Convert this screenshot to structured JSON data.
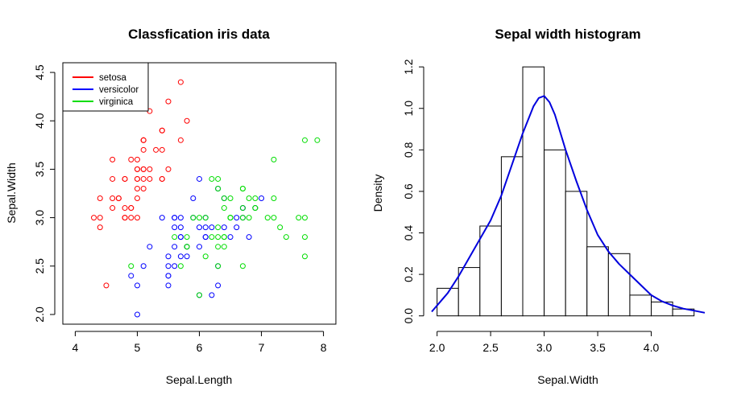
{
  "chart_data": [
    {
      "type": "scatter",
      "title": "Classfication iris data",
      "xlabel": "Sepal.Length",
      "ylabel": "Sepal.Width",
      "xlim": [
        3.8,
        8.2
      ],
      "ylim": [
        1.9,
        4.6
      ],
      "xticks": [
        "4",
        "5",
        "6",
        "7",
        "8"
      ],
      "yticks": [
        "2.0",
        "2.5",
        "3.0",
        "3.5",
        "4.0",
        "4.5"
      ],
      "legend": {
        "position": "top-left",
        "entries": [
          "setosa",
          "versicolor",
          "virginica"
        ]
      },
      "colors": {
        "setosa": "#ff0000",
        "versicolor": "#0000ff",
        "virginica": "#00dd00"
      },
      "series": [
        {
          "name": "setosa",
          "color": "#ff0000",
          "points": [
            [
              5.1,
              3.5
            ],
            [
              4.9,
              3.0
            ],
            [
              4.7,
              3.2
            ],
            [
              4.6,
              3.1
            ],
            [
              5.0,
              3.6
            ],
            [
              5.4,
              3.9
            ],
            [
              4.6,
              3.4
            ],
            [
              5.0,
              3.4
            ],
            [
              4.4,
              2.9
            ],
            [
              4.9,
              3.1
            ],
            [
              5.4,
              3.7
            ],
            [
              4.8,
              3.4
            ],
            [
              4.8,
              3.0
            ],
            [
              4.3,
              3.0
            ],
            [
              5.8,
              4.0
            ],
            [
              5.7,
              4.4
            ],
            [
              5.4,
              3.9
            ],
            [
              5.1,
              3.5
            ],
            [
              5.7,
              3.8
            ],
            [
              5.1,
              3.8
            ],
            [
              5.4,
              3.4
            ],
            [
              5.1,
              3.7
            ],
            [
              4.6,
              3.6
            ],
            [
              5.1,
              3.3
            ],
            [
              4.8,
              3.4
            ],
            [
              5.0,
              3.0
            ],
            [
              5.0,
              3.4
            ],
            [
              5.2,
              3.5
            ],
            [
              5.2,
              3.4
            ],
            [
              4.7,
              3.2
            ],
            [
              4.8,
              3.1
            ],
            [
              5.4,
              3.4
            ],
            [
              5.2,
              4.1
            ],
            [
              5.5,
              4.2
            ],
            [
              4.9,
              3.1
            ],
            [
              5.0,
              3.2
            ],
            [
              5.5,
              3.5
            ],
            [
              4.9,
              3.6
            ],
            [
              4.4,
              3.0
            ],
            [
              5.1,
              3.4
            ],
            [
              5.0,
              3.5
            ],
            [
              4.5,
              2.3
            ],
            [
              4.4,
              3.2
            ],
            [
              5.0,
              3.5
            ],
            [
              5.1,
              3.8
            ],
            [
              4.8,
              3.0
            ],
            [
              5.1,
              3.8
            ],
            [
              4.6,
              3.2
            ],
            [
              5.3,
              3.7
            ],
            [
              5.0,
              3.3
            ]
          ]
        },
        {
          "name": "versicolor",
          "color": "#0000ff",
          "points": [
            [
              7.0,
              3.2
            ],
            [
              6.4,
              3.2
            ],
            [
              6.9,
              3.1
            ],
            [
              5.5,
              2.3
            ],
            [
              6.5,
              2.8
            ],
            [
              5.7,
              2.8
            ],
            [
              6.3,
              3.3
            ],
            [
              4.9,
              2.4
            ],
            [
              6.6,
              2.9
            ],
            [
              5.2,
              2.7
            ],
            [
              5.0,
              2.0
            ],
            [
              5.9,
              3.0
            ],
            [
              6.0,
              2.2
            ],
            [
              6.1,
              2.9
            ],
            [
              5.6,
              2.9
            ],
            [
              6.7,
              3.1
            ],
            [
              5.6,
              3.0
            ],
            [
              5.8,
              2.7
            ],
            [
              6.2,
              2.2
            ],
            [
              5.6,
              2.5
            ],
            [
              5.9,
              3.2
            ],
            [
              6.1,
              2.8
            ],
            [
              6.3,
              2.5
            ],
            [
              6.1,
              2.8
            ],
            [
              6.4,
              2.9
            ],
            [
              6.6,
              3.0
            ],
            [
              6.8,
              2.8
            ],
            [
              6.7,
              3.0
            ],
            [
              6.0,
              2.9
            ],
            [
              5.7,
              2.6
            ],
            [
              5.5,
              2.4
            ],
            [
              5.5,
              2.4
            ],
            [
              5.8,
              2.7
            ],
            [
              6.0,
              2.7
            ],
            [
              5.4,
              3.0
            ],
            [
              6.0,
              3.4
            ],
            [
              6.7,
              3.1
            ],
            [
              6.3,
              2.3
            ],
            [
              5.6,
              3.0
            ],
            [
              5.5,
              2.5
            ],
            [
              5.5,
              2.6
            ],
            [
              6.1,
              3.0
            ],
            [
              5.8,
              2.6
            ],
            [
              5.0,
              2.3
            ],
            [
              5.6,
              2.7
            ],
            [
              5.7,
              3.0
            ],
            [
              5.7,
              2.9
            ],
            [
              6.2,
              2.9
            ],
            [
              5.1,
              2.5
            ],
            [
              5.7,
              2.8
            ]
          ]
        },
        {
          "name": "virginica",
          "color": "#00dd00",
          "points": [
            [
              6.3,
              3.3
            ],
            [
              5.8,
              2.7
            ],
            [
              7.1,
              3.0
            ],
            [
              6.3,
              2.9
            ],
            [
              6.5,
              3.0
            ],
            [
              7.6,
              3.0
            ],
            [
              4.9,
              2.5
            ],
            [
              7.3,
              2.9
            ],
            [
              6.7,
              2.5
            ],
            [
              7.2,
              3.6
            ],
            [
              6.5,
              3.2
            ],
            [
              6.4,
              2.7
            ],
            [
              6.8,
              3.0
            ],
            [
              5.7,
              2.5
            ],
            [
              5.8,
              2.8
            ],
            [
              6.4,
              3.2
            ],
            [
              6.5,
              3.0
            ],
            [
              7.7,
              3.8
            ],
            [
              7.7,
              2.6
            ],
            [
              6.0,
              2.2
            ],
            [
              6.9,
              3.2
            ],
            [
              5.6,
              2.8
            ],
            [
              7.7,
              2.8
            ],
            [
              6.3,
              2.7
            ],
            [
              6.7,
              3.3
            ],
            [
              7.2,
              3.2
            ],
            [
              6.2,
              2.8
            ],
            [
              6.1,
              3.0
            ],
            [
              6.4,
              2.8
            ],
            [
              7.2,
              3.0
            ],
            [
              7.4,
              2.8
            ],
            [
              7.9,
              3.8
            ],
            [
              6.4,
              2.8
            ],
            [
              6.3,
              2.8
            ],
            [
              6.1,
              2.6
            ],
            [
              7.7,
              3.0
            ],
            [
              6.3,
              3.4
            ],
            [
              6.4,
              3.1
            ],
            [
              6.0,
              3.0
            ],
            [
              6.9,
              3.1
            ],
            [
              6.7,
              3.1
            ],
            [
              6.9,
              3.1
            ],
            [
              5.8,
              2.7
            ],
            [
              6.8,
              3.2
            ],
            [
              6.7,
              3.3
            ],
            [
              6.7,
              3.0
            ],
            [
              6.3,
              2.5
            ],
            [
              6.5,
              3.0
            ],
            [
              6.2,
              3.4
            ],
            [
              5.9,
              3.0
            ]
          ]
        }
      ]
    },
    {
      "type": "bar",
      "subtype": "histogram",
      "title": "Sepal width histogram",
      "xlabel": "Sepal.Width",
      "ylabel": "Density",
      "xlim": [
        1.95,
        4.5
      ],
      "ylim": [
        -0.04,
        1.22
      ],
      "xticks": [
        "2.0",
        "2.5",
        "3.0",
        "3.5",
        "4.0"
      ],
      "yticks": [
        "0.0",
        "0.2",
        "0.4",
        "0.6",
        "0.8",
        "1.0",
        "1.2"
      ],
      "bins": [
        {
          "x0": 2.0,
          "x1": 2.2,
          "density": 0.133
        },
        {
          "x0": 2.2,
          "x1": 2.4,
          "density": 0.233
        },
        {
          "x0": 2.4,
          "x1": 2.6,
          "density": 0.433
        },
        {
          "x0": 2.6,
          "x1": 2.8,
          "density": 0.767
        },
        {
          "x0": 2.8,
          "x1": 3.0,
          "density": 1.2
        },
        {
          "x0": 3.0,
          "x1": 3.2,
          "density": 0.8
        },
        {
          "x0": 3.2,
          "x1": 3.4,
          "density": 0.6
        },
        {
          "x0": 3.4,
          "x1": 3.6,
          "density": 0.333
        },
        {
          "x0": 3.6,
          "x1": 3.8,
          "density": 0.3
        },
        {
          "x0": 3.8,
          "x1": 4.0,
          "density": 0.1
        },
        {
          "x0": 4.0,
          "x1": 4.2,
          "density": 0.067
        },
        {
          "x0": 4.2,
          "x1": 4.4,
          "density": 0.033
        }
      ],
      "density_curve": {
        "color": "#0000dd",
        "x": [
          1.92,
          2.0,
          2.1,
          2.2,
          2.3,
          2.4,
          2.5,
          2.6,
          2.7,
          2.8,
          2.9,
          2.95,
          3.0,
          3.05,
          3.1,
          3.2,
          3.3,
          3.4,
          3.5,
          3.6,
          3.7,
          3.8,
          3.9,
          4.0,
          4.1,
          4.2,
          4.3,
          4.4,
          4.5
        ],
        "y": [
          0.02,
          0.05,
          0.11,
          0.19,
          0.28,
          0.37,
          0.46,
          0.58,
          0.73,
          0.88,
          1.01,
          1.05,
          1.06,
          1.03,
          0.97,
          0.8,
          0.65,
          0.51,
          0.39,
          0.31,
          0.25,
          0.2,
          0.15,
          0.1,
          0.07,
          0.05,
          0.035,
          0.025,
          0.015
        ]
      }
    }
  ]
}
